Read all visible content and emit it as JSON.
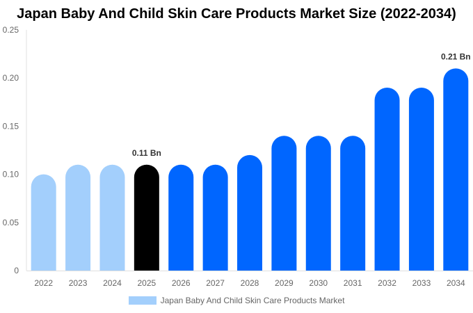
{
  "chart_data": {
    "type": "bar",
    "title": "Japan Baby And Child Skin Care Products Market Size (2022-2034)",
    "categories": [
      "2022",
      "2023",
      "2024",
      "2025",
      "2026",
      "2027",
      "2028",
      "2029",
      "2030",
      "2031",
      "2032",
      "2033",
      "2034"
    ],
    "series": [
      {
        "name": "Japan Baby And Child Skin Care Products Market",
        "values": [
          0.1,
          0.11,
          0.11,
          0.11,
          0.11,
          0.11,
          0.12,
          0.14,
          0.14,
          0.14,
          0.19,
          0.19,
          0.21
        ]
      }
    ],
    "ylim": [
      0,
      0.25
    ],
    "yticks": [
      "0",
      "0.05",
      "0.10",
      "0.15",
      "0.20",
      "0.25"
    ],
    "data_labels": {
      "3": "0.11 Bn",
      "12": "0.21 Bn"
    },
    "colors": {
      "historical": "#a3cffc",
      "current": "#000000",
      "forecast": "#0066ff"
    },
    "historical_count": 3,
    "current_index": 3,
    "grid": false,
    "legend_position": "bottom"
  }
}
